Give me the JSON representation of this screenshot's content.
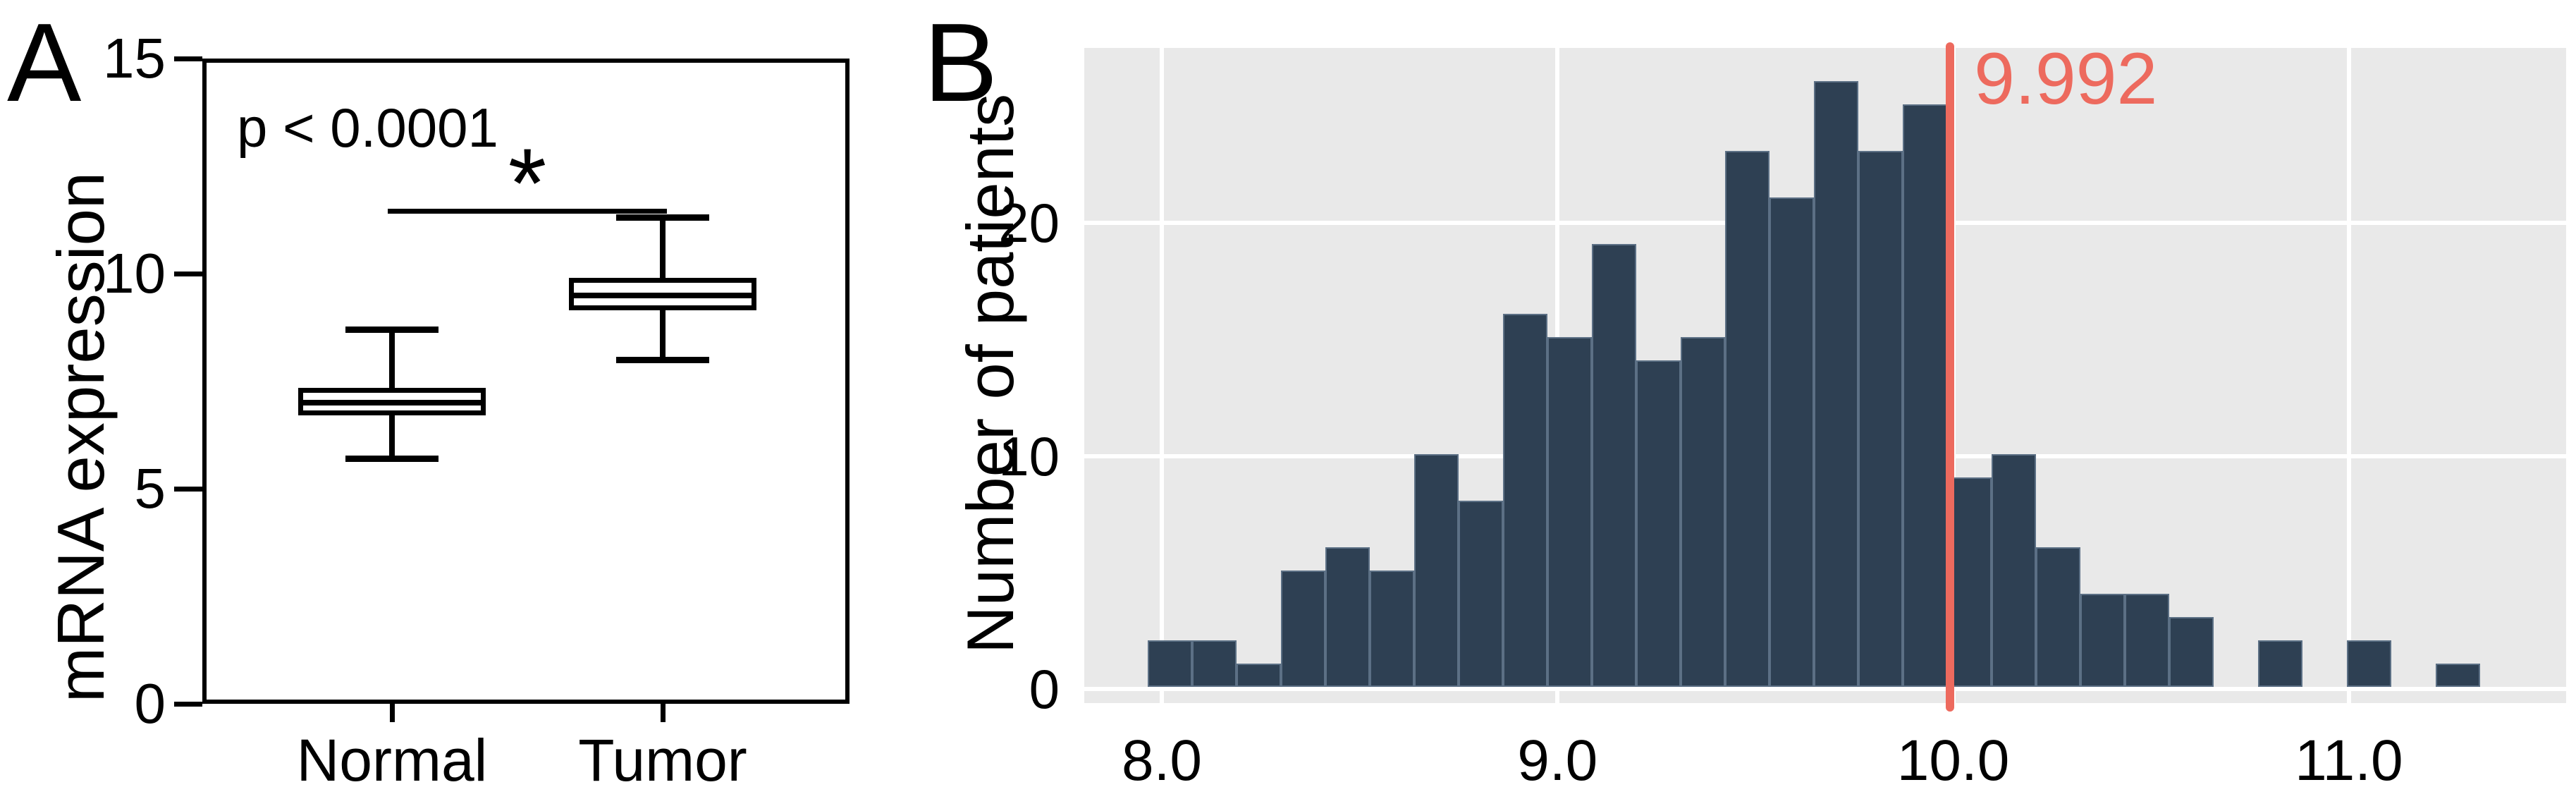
{
  "chart_data": [
    {
      "type": "boxplot",
      "panel_label": "A",
      "ylabel": "mRNA expression",
      "annotation": "p < 0.0001",
      "significance_marker": "*",
      "significance_line_y": 11.45,
      "categories": [
        "Normal",
        "Tumor"
      ],
      "yticks": [
        0,
        5,
        10,
        15
      ],
      "ylim": [
        0,
        15
      ],
      "series": [
        {
          "name": "Normal",
          "min": 5.7,
          "q1": 6.7,
          "median": 7.0,
          "q3": 7.35,
          "max": 8.7
        },
        {
          "name": "Tumor",
          "min": 8.0,
          "q1": 9.15,
          "median": 9.5,
          "q3": 9.9,
          "max": 11.3
        }
      ],
      "box_color": "#000000",
      "grid": false
    },
    {
      "type": "bar",
      "panel_label": "B",
      "ylabel": "Number of patients",
      "yticks": [
        0,
        10,
        20
      ],
      "xticks": [
        8.0,
        9.0,
        10.0,
        11.0
      ],
      "xlim": [
        7.8,
        11.55
      ],
      "ylim": [
        -0.7,
        27.4
      ],
      "bin_start": 7.9643,
      "bin_width": 0.11227,
      "counts": [
        2,
        2,
        1,
        5,
        6,
        5,
        10,
        8,
        16,
        15,
        19,
        14,
        15,
        23,
        21,
        26,
        23,
        25,
        9,
        10,
        6,
        4,
        4,
        3,
        0,
        2,
        0,
        2,
        0,
        1
      ],
      "threshold": {
        "value": 9.992,
        "label": "9.992"
      },
      "threshold_color": "#ed6a5e",
      "bar_color": "#2e4053",
      "bar_edge_color": "#5c7085",
      "plot_bg": "#e9e9e9",
      "grid": true,
      "legend": "none"
    }
  ]
}
